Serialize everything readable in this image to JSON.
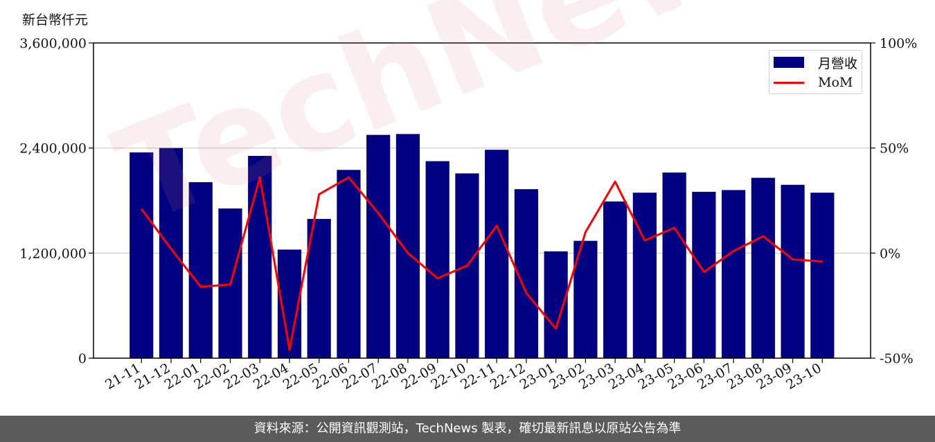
{
  "unit_label": "新台幣仟元",
  "footer_text": "資料來源：公開資訊觀測站，TechNews 製表，確切最新訊息以原站公告為準",
  "watermark_text": "TechNews",
  "colors": {
    "bar": "#000080",
    "line": "#ff0000",
    "footer_bg": "#5b5b5b"
  },
  "chart_data": {
    "type": "bar",
    "categories": [
      "21-11",
      "21-12",
      "22-01",
      "22-02",
      "22-03",
      "22-04",
      "22-05",
      "22-06",
      "22-07",
      "22-08",
      "22-09",
      "22-10",
      "22-11",
      "22-12",
      "23-01",
      "23-02",
      "23-03",
      "23-04",
      "23-05",
      "23-06",
      "23-07",
      "23-08",
      "23-09",
      "23-10"
    ],
    "series": [
      {
        "name": "月營收",
        "axis": "left",
        "type": "bar",
        "values": [
          2350000,
          2400000,
          2010000,
          1710000,
          2310000,
          1240000,
          1590000,
          2150000,
          2550000,
          2560000,
          2250000,
          2110000,
          2380000,
          1930000,
          1220000,
          1340000,
          1790000,
          1890000,
          2120000,
          1900000,
          1920000,
          2060000,
          1980000,
          1890000
        ]
      },
      {
        "name": "MoM",
        "axis": "right",
        "type": "line",
        "unit": "%",
        "values": [
          21,
          2,
          -16,
          -15,
          36,
          -46,
          28,
          36,
          19,
          0,
          -12,
          -6,
          13,
          -19,
          -36,
          10,
          34,
          6,
          12,
          -9,
          1,
          8,
          -3,
          -4
        ]
      }
    ],
    "y_left": {
      "ylim": [
        0,
        3600000
      ],
      "ticks": [
        "0",
        "1,200,000",
        "2,400,000",
        "3,600,000"
      ]
    },
    "y_right": {
      "ylim": [
        -50,
        100
      ],
      "ticks": [
        "-50%",
        "0%",
        "50%",
        "100%"
      ]
    },
    "grid": "horizontal",
    "legend": "top-right",
    "legend_labels": [
      "月營收",
      "MoM"
    ]
  }
}
